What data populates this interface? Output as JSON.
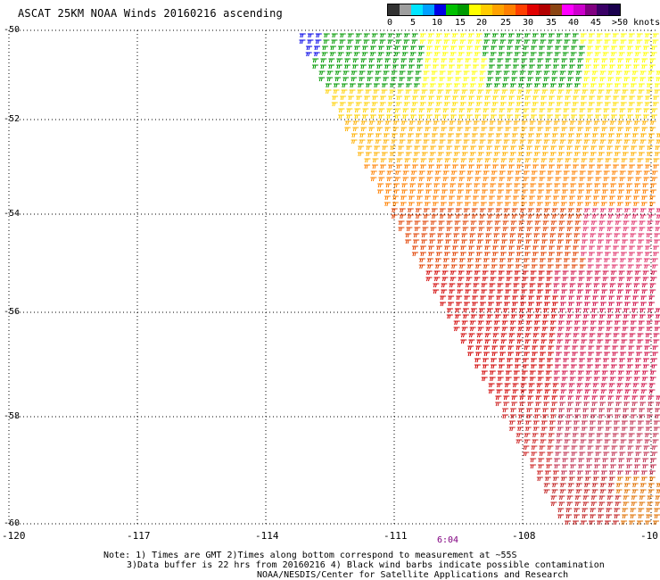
{
  "title": "ASCAT 25KM NOAA Winds 20160216 ascending",
  "legend": {
    "labels": [
      "0",
      "5",
      "10",
      "15",
      "20",
      "25",
      "30",
      "35",
      "40",
      "45",
      ">50 knots"
    ],
    "colors": [
      "#333333",
      "#9e9e9e",
      "#00e5ff",
      "#00a0ff",
      "#0000e6",
      "#00c000",
      "#009900",
      "#ffff00",
      "#ffcc00",
      "#ffa200",
      "#ff7f00",
      "#ff3f00",
      "#e00000",
      "#b30000",
      "#8b4513",
      "#ff00ff",
      "#cc00cc",
      "#800080",
      "#3a0066",
      "#1a004d"
    ]
  },
  "axes": {
    "x_ticks": [
      "-120",
      "-117",
      "-114",
      "-111",
      "-108",
      "-10"
    ],
    "y_ticks": [
      "-50",
      "-52",
      "-54",
      "-56",
      "-58",
      "-60"
    ]
  },
  "time_label": "6:04",
  "notes": [
    "Note: 1) Times are GMT 2)Times along bottom correspond to measurement at ~55S",
    "3)Data buffer is 22 hrs from 20160216 4) Black wind barbs indicate possible contamination",
    "NOAA/NESDIS/Center for Satellite Applications and Research"
  ]
}
